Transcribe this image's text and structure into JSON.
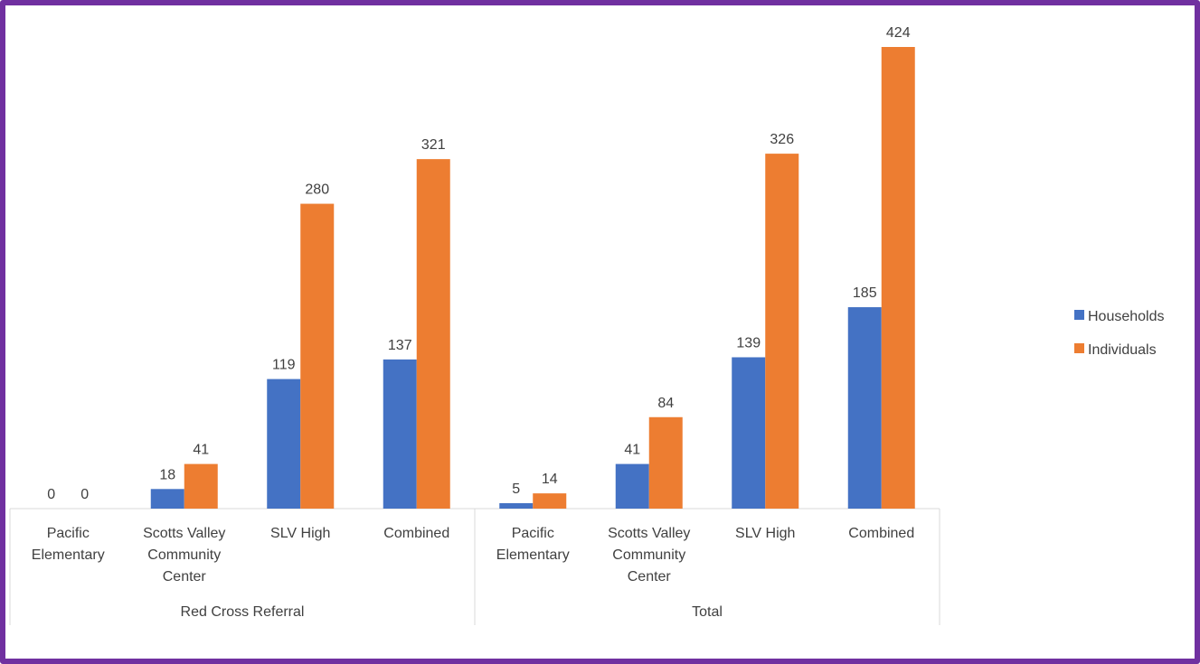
{
  "chart_data": {
    "type": "bar",
    "groups": [
      {
        "label": "Red Cross Referral",
        "categories": [
          "Pacific Elementary",
          "Scotts Valley Community Center",
          "SLV High",
          "Combined"
        ]
      },
      {
        "label": "Total",
        "categories": [
          "Pacific Elementary",
          "Scotts Valley Community Center",
          "SLV High",
          "Combined"
        ]
      }
    ],
    "category_label_lines": [
      [
        "Pacific",
        "Elementary"
      ],
      [
        "Scotts Valley",
        "Community",
        "Center"
      ],
      [
        "SLV High"
      ],
      [
        "Combined"
      ]
    ],
    "series": [
      {
        "name": "Households",
        "color": "#4472c4",
        "values": [
          0,
          18,
          119,
          137,
          5,
          41,
          139,
          185
        ]
      },
      {
        "name": "Individuals",
        "color": "#ed7d31",
        "values": [
          0,
          41,
          280,
          321,
          14,
          84,
          326,
          424
        ]
      }
    ],
    "ylim": [
      0,
      424
    ],
    "data_labels": true,
    "grid": false,
    "legend_position": "right"
  }
}
